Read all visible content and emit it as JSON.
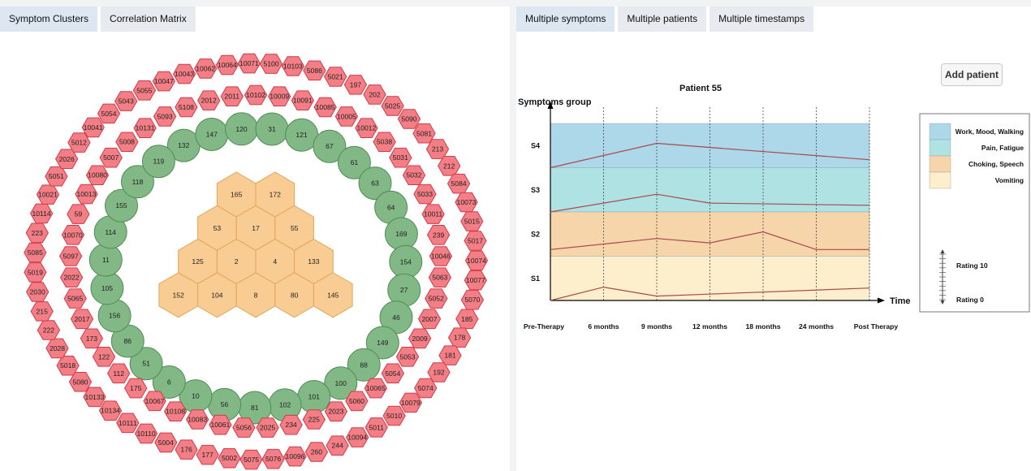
{
  "left_tabs": [
    "Symptom Clusters",
    "Correlation Matrix"
  ],
  "right_tabs": [
    "Multiple symptoms",
    "Multiple patients",
    "Multiple timestamps"
  ],
  "add_patient_label": "Add patient",
  "colors": {
    "red": "#f37e86",
    "green": "#81b885",
    "orange": "#f8cc92",
    "red_stroke": "#d03a48",
    "green_stroke": "#4f8d55",
    "orange_stroke": "#e0a65c"
  },
  "hexes": {
    "orange": [
      "165",
      "172",
      "53",
      "17",
      "55",
      "125",
      "2",
      "4",
      "133",
      "152",
      "104",
      "8",
      "80",
      "145"
    ],
    "green": [
      "132",
      "147",
      "120",
      "31",
      "121",
      "67",
      "61",
      "63",
      "64",
      "169",
      "154",
      "27",
      "46",
      "149",
      "88",
      "100",
      "101",
      "102",
      "81",
      "56",
      "10",
      "6",
      "51",
      "86",
      "156",
      "105",
      "11",
      "114",
      "155",
      "118",
      "119"
    ],
    "red": [
      "10102",
      "10009",
      "10091",
      "10085",
      "10005",
      "10012",
      "5038",
      "5031",
      "5032",
      "5033",
      "10011",
      "239",
      "10046",
      "5063",
      "5052",
      "2007",
      "2009",
      "5053",
      "5054",
      "10065",
      "5060",
      "2023",
      "225",
      "234",
      "2025",
      "5056",
      "10061",
      "10083",
      "10108",
      "10067",
      "175",
      "112",
      "122",
      "173",
      "2017",
      "5065",
      "2022",
      "5097",
      "10070",
      "59",
      "10013",
      "10080",
      "5007",
      "5008",
      "10131",
      "5093",
      "5108",
      "2012",
      "2011",
      "5100",
      "10103",
      "5086",
      "5021",
      "197",
      "202",
      "5025",
      "5090",
      "5081",
      "213",
      "212",
      "5084",
      "10073",
      "5015",
      "5017",
      "10074",
      "10077",
      "5070",
      "185",
      "178",
      "181",
      "192",
      "5074",
      "10079",
      "5010",
      "5011",
      "10094",
      "244",
      "260",
      "10096",
      "5076",
      "5075",
      "5002",
      "177",
      "176",
      "5004",
      "10110",
      "10111",
      "10134",
      "10133",
      "5080",
      "5018",
      "2028",
      "222",
      "215",
      "2030",
      "5019",
      "5085",
      "223",
      "10114",
      "10021",
      "5051",
      "2026",
      "5012",
      "10041",
      "5054",
      "5043",
      "5055",
      "10047",
      "10043",
      "10062",
      "10064",
      "10071"
    ]
  },
  "chart": {
    "title": "Patient 55",
    "y_axis_label": "Symptoms group",
    "x_axis_label": "Time",
    "time_labels": [
      "Pre-Therapy",
      "6 months",
      "9 months",
      "12 months",
      "18 months",
      "24 months",
      "Post Therapy"
    ],
    "bands": [
      {
        "id": "S4",
        "color": "#acd8ea",
        "legend": "Work, Mood, Walking"
      },
      {
        "id": "S3",
        "color": "#afe3e3",
        "legend": "Pain, Fatigue"
      },
      {
        "id": "S2",
        "color": "#f7d5aa",
        "legend": "Choking, Speech"
      },
      {
        "id": "S1",
        "color": "#fdefcc",
        "legend": "Vomiting"
      }
    ],
    "rating_max_label": "Rating 10",
    "rating_min_label": "Rating 0",
    "line_color": "#a9484d",
    "series": [
      {
        "band": "S4",
        "ratings": [
          0,
          null,
          5.5,
          null,
          null,
          null,
          1.8
        ]
      },
      {
        "band": "S3",
        "ratings": [
          0,
          null,
          4,
          2,
          null,
          null,
          1.5
        ]
      },
      {
        "band": "S2",
        "ratings": [
          1.5,
          null,
          4,
          3,
          5.5,
          1.5,
          1.5
        ]
      },
      {
        "band": "S1",
        "ratings": [
          0,
          3,
          1,
          null,
          null,
          null,
          2.8
        ]
      }
    ]
  }
}
